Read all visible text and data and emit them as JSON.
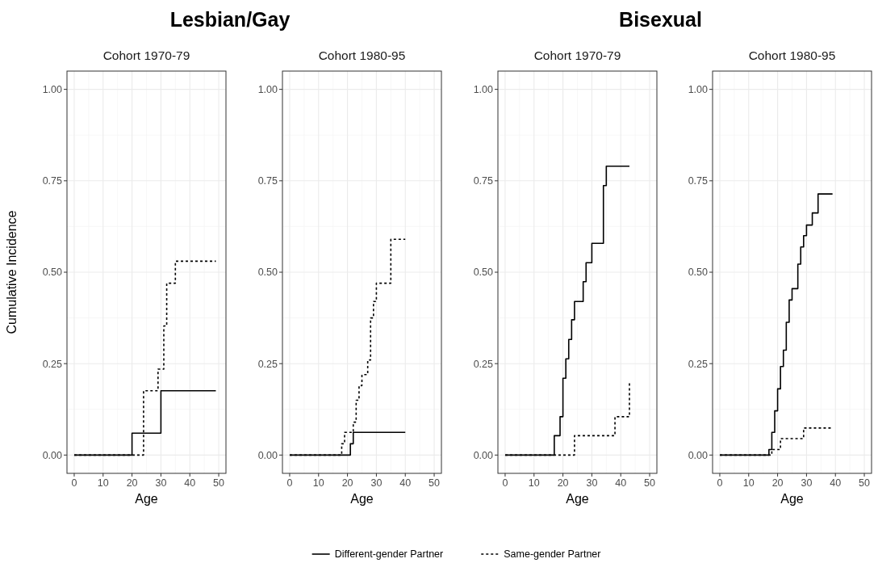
{
  "chart_data": [
    {
      "type": "step",
      "title": "Cohort 1970-79",
      "xlabel": "Age",
      "ylabel": "Cumulative Incidence",
      "annotations": [
        "Lesbian/Gay"
      ],
      "xlim": [
        -2.5,
        52.5
      ],
      "ylim": [
        -0.05,
        1.05
      ],
      "xticks": [
        0,
        10,
        20,
        30,
        40,
        50
      ],
      "yticks": [
        {
          "value": 0,
          "label": "0.00"
        },
        {
          "value": 0.25,
          "label": "0.25"
        },
        {
          "value": 0.5,
          "label": "0.50"
        },
        {
          "value": 0.75,
          "label": "0.75"
        },
        {
          "value": 1,
          "label": "1.00"
        }
      ],
      "grid": true,
      "legend": "bottom",
      "series": [
        {
          "name": "Different-gender Partner",
          "color": "#000000",
          "line_style": "solid",
          "x": [
            0,
            20,
            30,
            49
          ],
          "values": [
            0,
            0.06,
            0.176,
            0.176
          ]
        },
        {
          "name": "Same-gender Partner",
          "color": "#000000",
          "line_style": "dashed",
          "x": [
            0,
            24,
            29,
            31,
            32,
            35,
            49
          ],
          "values": [
            0,
            0.176,
            0.235,
            0.353,
            0.47,
            0.53,
            0.53
          ]
        }
      ]
    },
    {
      "type": "step",
      "title": "Cohort 1980-95",
      "xlabel": "Age",
      "xlim": [
        -2.5,
        52.5
      ],
      "ylim": [
        -0.05,
        1.05
      ],
      "xticks": [
        0,
        10,
        20,
        30,
        40,
        50
      ],
      "yticks": [
        {
          "value": 0,
          "label": "0.00"
        },
        {
          "value": 0.25,
          "label": "0.25"
        },
        {
          "value": 0.5,
          "label": "0.50"
        },
        {
          "value": 0.75,
          "label": "0.75"
        },
        {
          "value": 1,
          "label": "1.00"
        }
      ],
      "grid": true,
      "series": [
        {
          "color": "#000000",
          "line_style": "solid",
          "x": [
            0,
            21,
            22,
            40
          ],
          "values": [
            0,
            0.031,
            0.062,
            0.062
          ]
        },
        {
          "color": "#000000",
          "line_style": "dashed",
          "x": [
            0,
            18,
            19,
            22,
            23,
            24,
            25,
            27,
            28,
            29,
            30,
            35,
            40
          ],
          "values": [
            0,
            0.031,
            0.062,
            0.09,
            0.15,
            0.19,
            0.22,
            0.26,
            0.375,
            0.42,
            0.47,
            0.59,
            0.59
          ]
        }
      ]
    },
    {
      "type": "step",
      "title": "Cohort 1970-79",
      "xlabel": "Age",
      "annotations": [
        "Bisexual"
      ],
      "xlim": [
        -2.5,
        52.5
      ],
      "ylim": [
        -0.05,
        1.05
      ],
      "xticks": [
        0,
        10,
        20,
        30,
        40,
        50
      ],
      "yticks": [
        {
          "value": 0,
          "label": "0.00"
        },
        {
          "value": 0.25,
          "label": "0.25"
        },
        {
          "value": 0.5,
          "label": "0.50"
        },
        {
          "value": 0.75,
          "label": "0.75"
        },
        {
          "value": 1,
          "label": "1.00"
        }
      ],
      "grid": true,
      "series": [
        {
          "color": "#000000",
          "line_style": "solid",
          "x": [
            0,
            17,
            19,
            20,
            21,
            22,
            23,
            24,
            27,
            28,
            30,
            34,
            35,
            43
          ],
          "values": [
            0,
            0.053,
            0.105,
            0.21,
            0.263,
            0.316,
            0.37,
            0.42,
            0.474,
            0.526,
            0.579,
            0.737,
            0.79,
            0.79
          ]
        },
        {
          "color": "#000000",
          "line_style": "dashed",
          "x": [
            0,
            24,
            38,
            43
          ],
          "values": [
            0,
            0.053,
            0.105,
            0.2
          ]
        }
      ]
    },
    {
      "type": "step",
      "title": "Cohort 1980-95",
      "xlabel": "Age",
      "xlim": [
        -2.5,
        52.5
      ],
      "ylim": [
        -0.05,
        1.05
      ],
      "xticks": [
        0,
        10,
        20,
        30,
        40,
        50
      ],
      "yticks": [
        {
          "value": 0,
          "label": "0.00"
        },
        {
          "value": 0.25,
          "label": "0.25"
        },
        {
          "value": 0.5,
          "label": "0.50"
        },
        {
          "value": 0.75,
          "label": "0.75"
        },
        {
          "value": 1,
          "label": "1.00"
        }
      ],
      "grid": true,
      "series": [
        {
          "color": "#000000",
          "line_style": "solid",
          "x": [
            0,
            17,
            18,
            19,
            20,
            21,
            22,
            23,
            24,
            25,
            27,
            28,
            29,
            30,
            32,
            34,
            39
          ],
          "values": [
            0,
            0.015,
            0.062,
            0.121,
            0.181,
            0.242,
            0.287,
            0.363,
            0.424,
            0.455,
            0.522,
            0.569,
            0.6,
            0.629,
            0.662,
            0.714,
            0.714
          ]
        },
        {
          "color": "#000000",
          "line_style": "dashed",
          "x": [
            0,
            18,
            21,
            29,
            39
          ],
          "values": [
            0,
            0.015,
            0.045,
            0.074,
            0.074
          ]
        }
      ]
    }
  ]
}
